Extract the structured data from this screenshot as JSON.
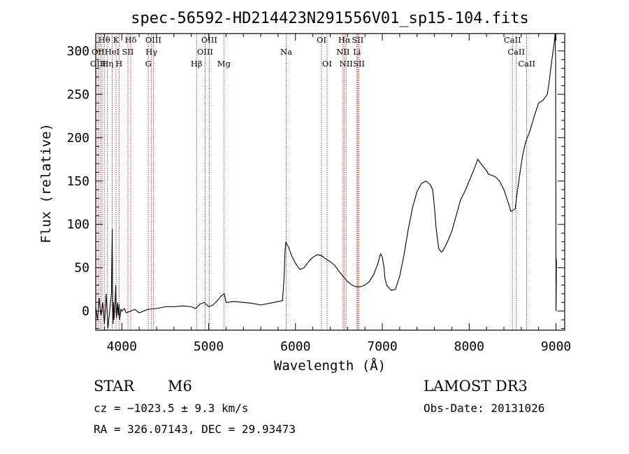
{
  "chart_data": {
    "type": "line",
    "title": "spec-56592-HD214423N291556V01_sp15-104.fits",
    "xlabel": "Wavelength (Å)",
    "ylabel": "Flux (relative)",
    "xlim": [
      3700,
      9100
    ],
    "ylim": [
      -22,
      320
    ],
    "xticks": [
      4000,
      5000,
      6000,
      7000,
      8000,
      9000
    ],
    "yticks": [
      0,
      50,
      100,
      150,
      200,
      250,
      300
    ],
    "series": [
      {
        "name": "spectrum",
        "x": [
          3700,
          3720,
          3740,
          3760,
          3780,
          3800,
          3820,
          3840,
          3860,
          3880,
          3890,
          3895,
          3900,
          3905,
          3910,
          3920,
          3930,
          3935,
          3940,
          3950,
          3960,
          3968,
          3975,
          3990,
          4000,
          4030,
          4050,
          4100,
          4150,
          4200,
          4300,
          4400,
          4500,
          4600,
          4700,
          4800,
          4850,
          4900,
          4950,
          5000,
          5050,
          5100,
          5150,
          5180,
          5200,
          5300,
          5400,
          5500,
          5600,
          5700,
          5800,
          5850,
          5870,
          5880,
          5890,
          5900,
          5920,
          5950,
          6000,
          6050,
          6100,
          6150,
          6200,
          6250,
          6300,
          6350,
          6400,
          6450,
          6500,
          6550,
          6600,
          6650,
          6700,
          6750,
          6800,
          6850,
          6900,
          6950,
          6970,
          6980,
          7000,
          7020,
          7030,
          7050,
          7100,
          7150,
          7200,
          7250,
          7300,
          7350,
          7400,
          7450,
          7500,
          7550,
          7580,
          7600,
          7620,
          7650,
          7680,
          7700,
          7750,
          7800,
          7850,
          7900,
          7950,
          8000,
          8050,
          8100,
          8150,
          8200,
          8220,
          8250,
          8300,
          8350,
          8400,
          8450,
          8480,
          8500,
          8530,
          8550,
          8600,
          8620,
          8650,
          8700,
          8750,
          8800,
          8850,
          8900,
          8920,
          8940,
          8960,
          8980,
          8990,
          8995,
          9000,
          9005
        ],
        "y": [
          5,
          -10,
          15,
          -5,
          10,
          -15,
          20,
          -20,
          0,
          20,
          95,
          5,
          -15,
          10,
          -10,
          5,
          30,
          0,
          -8,
          10,
          -5,
          8,
          -10,
          2,
          0,
          3,
          -2,
          0,
          2,
          -2,
          2,
          3,
          5,
          5,
          6,
          5,
          3,
          8,
          10,
          5,
          7,
          12,
          18,
          20,
          10,
          11,
          10,
          9,
          7,
          9,
          11,
          12,
          40,
          70,
          80,
          77,
          74,
          65,
          55,
          48,
          50,
          57,
          62,
          65,
          64,
          60,
          57,
          53,
          46,
          40,
          34,
          30,
          28,
          28,
          30,
          34,
          42,
          55,
          63,
          66,
          62,
          50,
          38,
          30,
          24,
          25,
          40,
          65,
          95,
          120,
          138,
          147,
          150,
          146,
          140,
          120,
          95,
          72,
          68,
          70,
          80,
          92,
          110,
          128,
          138,
          150,
          162,
          175,
          168,
          162,
          158,
          157,
          155,
          150,
          140,
          125,
          115,
          116,
          118,
          135,
          170,
          182,
          195,
          208,
          225,
          240,
          243,
          250,
          263,
          280,
          295,
          310,
          320,
          290,
          0,
          60
        ]
      }
    ],
    "spectral_lines": [
      {
        "label": "Hθ",
        "wave": 3798,
        "row": 1
      },
      {
        "label": "K",
        "wave": 3934,
        "row": 1
      },
      {
        "label": "Hδ",
        "wave": 4102,
        "row": 1
      },
      {
        "label": "OIII",
        "wave": 4363,
        "row": 1
      },
      {
        "label": "OIII",
        "wave": 5007,
        "row": 1
      },
      {
        "label": "Na",
        "wave": 5893,
        "row": 2
      },
      {
        "label": "OI",
        "wave": 6300,
        "row": 1
      },
      {
        "label": "Hα",
        "wave": 6563,
        "row": 1
      },
      {
        "label": "SII",
        "wave": 6717,
        "row": 1
      },
      {
        "label": "CaII",
        "wave": 8498,
        "row": 1
      },
      {
        "label": "OII",
        "wave": 3727,
        "row": 2
      },
      {
        "label": "HeI",
        "wave": 3889,
        "row": 2
      },
      {
        "label": "SII",
        "wave": 4070,
        "row": 2
      },
      {
        "label": "Hγ",
        "wave": 4341,
        "row": 2
      },
      {
        "label": "OIII",
        "wave": 4959,
        "row": 2
      },
      {
        "label": "NII",
        "wave": 6548,
        "row": 2
      },
      {
        "label": "Li",
        "wave": 6708,
        "row": 2
      },
      {
        "label": "CaII",
        "wave": 8542,
        "row": 2
      },
      {
        "label": "OIII",
        "wave": 3727,
        "row": 3
      },
      {
        "label": "Hη",
        "wave": 3835,
        "row": 3
      },
      {
        "label": "H",
        "wave": 3968,
        "row": 3
      },
      {
        "label": "G",
        "wave": 4305,
        "row": 3
      },
      {
        "label": "Hβ",
        "wave": 4861,
        "row": 3
      },
      {
        "label": "Mg",
        "wave": 5175,
        "row": 3
      },
      {
        "label": "OI",
        "wave": 6363,
        "row": 3
      },
      {
        "label": "NII",
        "wave": 6583,
        "row": 3
      },
      {
        "label": "SII",
        "wave": 6731,
        "row": 3
      },
      {
        "label": "CaII",
        "wave": 8662,
        "row": 3
      }
    ],
    "extra_line_waves": [
      3750,
      3771,
      3889
    ]
  },
  "info": {
    "object_type": "STAR",
    "subclass": "M6",
    "survey": "LAMOST DR3",
    "cz": "cz = −1023.5 ± 9.3 km/s",
    "obs_date": "Obs-Date: 20131026",
    "coords": "RA = 326.07143, DEC =  29.93473"
  },
  "colors": {
    "axis": "#000000",
    "spectrum": "#000000",
    "line_marker": "#a52a2a"
  }
}
